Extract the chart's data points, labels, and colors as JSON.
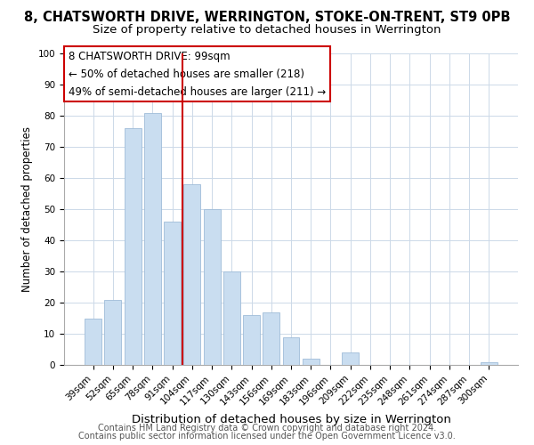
{
  "title": "8, CHATSWORTH DRIVE, WERRINGTON, STOKE-ON-TRENT, ST9 0PB",
  "subtitle": "Size of property relative to detached houses in Werrington",
  "xlabel": "Distribution of detached houses by size in Werrington",
  "ylabel": "Number of detached properties",
  "bar_labels": [
    "39sqm",
    "52sqm",
    "65sqm",
    "78sqm",
    "91sqm",
    "104sqm",
    "117sqm",
    "130sqm",
    "143sqm",
    "156sqm",
    "169sqm",
    "183sqm",
    "196sqm",
    "209sqm",
    "222sqm",
    "235sqm",
    "248sqm",
    "261sqm",
    "274sqm",
    "287sqm",
    "300sqm"
  ],
  "bar_values": [
    15,
    21,
    76,
    81,
    46,
    58,
    50,
    30,
    16,
    17,
    9,
    2,
    0,
    4,
    0,
    0,
    0,
    0,
    0,
    0,
    1
  ],
  "bar_color": "#c9ddf0",
  "bar_edge_color": "#a0bcd8",
  "vline_x": 4.5,
  "vline_color": "#cc0000",
  "annotation_title": "8 CHATSWORTH DRIVE: 99sqm",
  "annotation_line1": "← 50% of detached houses are smaller (218)",
  "annotation_line2": "49% of semi-detached houses are larger (211) →",
  "annotation_box_color": "#ffffff",
  "annotation_box_edge": "#cc0000",
  "ylim": [
    0,
    100
  ],
  "yticks": [
    0,
    10,
    20,
    30,
    40,
    50,
    60,
    70,
    80,
    90,
    100
  ],
  "footer1": "Contains HM Land Registry data © Crown copyright and database right 2024.",
  "footer2": "Contains public sector information licensed under the Open Government Licence v3.0.",
  "title_fontsize": 10.5,
  "subtitle_fontsize": 9.5,
  "xlabel_fontsize": 9.5,
  "ylabel_fontsize": 8.5,
  "tick_fontsize": 7.5,
  "annotation_fontsize": 8.5,
  "footer_fontsize": 7,
  "background_color": "#ffffff",
  "grid_color": "#ccd9e8"
}
